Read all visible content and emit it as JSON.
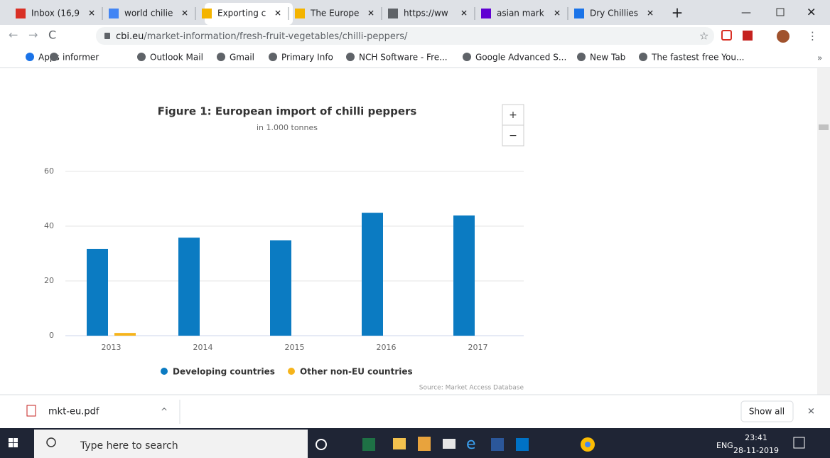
{
  "tabs": [
    "Inbox (16,9",
    "world chilie",
    "Exporting c",
    "The Europe",
    "https://ww",
    "asian mark",
    "Dry Chillies"
  ],
  "address_bar": {
    "domain": "cbi.eu",
    "path": "/market-information/fresh-fruit-vegetables/chilli-peppers/"
  },
  "bookmarks": [
    "Apps",
    "informer",
    "Outlook Mail",
    "Gmail",
    "Primary Info",
    "NCH Software - Fre...",
    "Google Advanced S...",
    "New Tab",
    "The fastest free You..."
  ],
  "zoom_buttons": [
    "+",
    "−"
  ],
  "chart_data": {
    "type": "bar",
    "title": "Figure 1: European import of chilli peppers",
    "subtitle": "in 1.000 tonnes",
    "categories": [
      "2013",
      "2014",
      "2015",
      "2016",
      "2017"
    ],
    "series": [
      {
        "name": "Developing countries",
        "color": "#0b7bc2",
        "values": [
          31.7,
          35.8,
          34.8,
          44.9,
          43.9
        ]
      },
      {
        "name": "Other non-EU countries",
        "color": "#f6b41b",
        "values": [
          1,
          0,
          0,
          0,
          0
        ]
      }
    ],
    "ylim": [
      0,
      60
    ],
    "yticks": [
      0,
      20,
      40,
      60
    ],
    "grid": true,
    "legend": "bottom",
    "source": "Source: Market Access Database"
  },
  "download_bar": {
    "file": "mkt-eu.pdf",
    "show_all": "Show all"
  },
  "taskbar": {
    "search": "Type here to search",
    "language": "ENG",
    "time": "23:41",
    "date": "28-11-2019"
  }
}
